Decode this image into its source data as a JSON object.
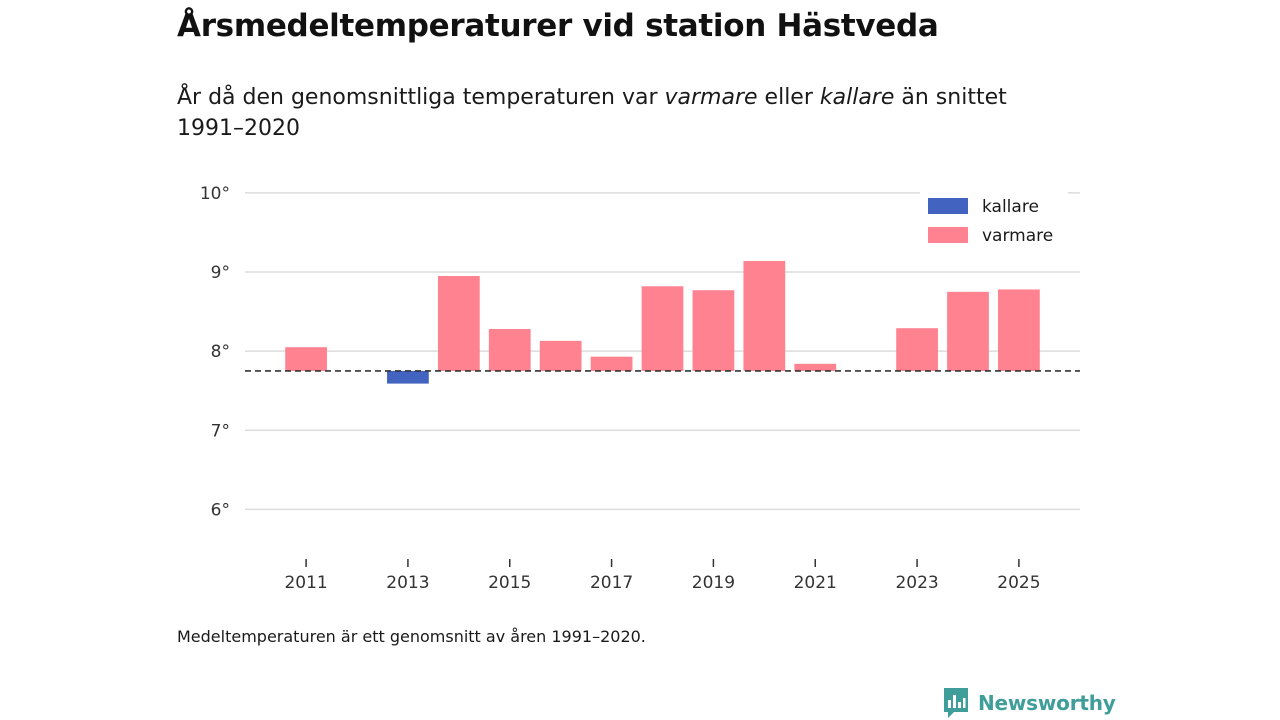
{
  "header": {
    "title": "Årsmedeltemperaturer vid station Hästveda",
    "subtitle_part1": "År då den genomsnittliga temperaturen var ",
    "subtitle_em1": "varmare",
    "subtitle_part2": " eller ",
    "subtitle_em2": "kallare",
    "subtitle_part3": " än snittet 1991–2020"
  },
  "footnote": "Medeltemperaturen är ett genomsnitt av åren 1991–2020.",
  "brand": {
    "name": "Newsworthy",
    "color": "#3f9d9a"
  },
  "colors": {
    "kallare": "#4263c0",
    "varmare": "#ff8290",
    "grid": "#dcdcdc",
    "baseline": "#333333"
  },
  "chart_data": {
    "type": "bar",
    "title": "Årsmedeltemperaturer vid station Hästveda",
    "xlabel": "",
    "ylabel": "",
    "baseline": 7.75,
    "ylim": [
      5.55,
      10.1
    ],
    "yticks": [
      6,
      7,
      8,
      9,
      10
    ],
    "ytick_labels": [
      "6°",
      "7°",
      "8°",
      "9°",
      "10°"
    ],
    "xlim": [
      2009.8,
      2026.2
    ],
    "xticks": [
      2011,
      2013,
      2015,
      2017,
      2019,
      2021,
      2023,
      2025
    ],
    "xtick_labels": [
      "2011",
      "2013",
      "2015",
      "2017",
      "2019",
      "2021",
      "2023",
      "2025"
    ],
    "legend": [
      {
        "key": "kallare",
        "label": "kallare"
      },
      {
        "key": "varmare",
        "label": "varmare"
      }
    ],
    "legend_position": "top-right",
    "bars": [
      {
        "year": 2011,
        "value": 8.05
      },
      {
        "year": 2013,
        "value": 7.59
      },
      {
        "year": 2014,
        "value": 8.95
      },
      {
        "year": 2015,
        "value": 8.28
      },
      {
        "year": 2016,
        "value": 8.13
      },
      {
        "year": 2017,
        "value": 7.93
      },
      {
        "year": 2018,
        "value": 8.82
      },
      {
        "year": 2019,
        "value": 8.77
      },
      {
        "year": 2020,
        "value": 9.14
      },
      {
        "year": 2021,
        "value": 7.84
      },
      {
        "year": 2023,
        "value": 8.29
      },
      {
        "year": 2024,
        "value": 8.75
      },
      {
        "year": 2025,
        "value": 8.78
      }
    ]
  }
}
